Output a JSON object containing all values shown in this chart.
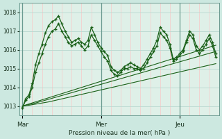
{
  "bg_color": "#cce8e0",
  "plot_bg_color": "#dff0e8",
  "grid_color_v": "#f8c8c8",
  "grid_color_h": "#b8d8d0",
  "line_color": "#1a6018",
  "xlabel": "Pression niveau de la mer( hPa )",
  "xtick_labels": [
    "Mar",
    "Mer",
    "Jeu"
  ],
  "xtick_positions": [
    0,
    24,
    48
  ],
  "vline_x": [
    0,
    24,
    48
  ],
  "ylim": [
    1012.5,
    1018.5
  ],
  "yticks": [
    1013,
    1014,
    1015,
    1016,
    1017,
    1018
  ],
  "xlim": [
    -1,
    60
  ],
  "n_points": 60,
  "series_volatile_1": [
    1012.9,
    1013.4,
    1013.6,
    1014.2,
    1015.2,
    1015.8,
    1016.3,
    1016.9,
    1017.3,
    1017.5,
    1017.6,
    1017.8,
    1017.4,
    1017.0,
    1016.7,
    1016.4,
    1016.5,
    1016.6,
    1016.4,
    1016.3,
    1016.5,
    1017.2,
    1016.8,
    1016.4,
    1016.1,
    1015.9,
    1015.7,
    1015.1,
    1014.9,
    1014.8,
    1014.9,
    1015.1,
    1015.2,
    1015.3,
    1015.2,
    1015.1,
    1015.0,
    1015.2,
    1015.5,
    1015.8,
    1016.1,
    1016.5,
    1017.2,
    1017.0,
    1016.8,
    1016.3,
    1015.5,
    1015.6,
    1015.8,
    1016.0,
    1016.5,
    1017.0,
    1016.8,
    1016.2,
    1016.0,
    1016.2,
    1016.5,
    1016.8,
    1016.4,
    1015.8
  ],
  "series_volatile_2": [
    1012.9,
    1013.3,
    1013.5,
    1014.0,
    1014.8,
    1015.3,
    1015.8,
    1016.3,
    1016.7,
    1017.0,
    1017.1,
    1017.4,
    1017.0,
    1016.7,
    1016.4,
    1016.2,
    1016.3,
    1016.4,
    1016.2,
    1016.0,
    1016.2,
    1016.8,
    1016.5,
    1016.2,
    1015.9,
    1015.6,
    1015.4,
    1014.9,
    1014.7,
    1014.6,
    1014.8,
    1015.0,
    1015.0,
    1015.1,
    1015.0,
    1015.0,
    1014.9,
    1015.0,
    1015.3,
    1015.6,
    1015.9,
    1016.2,
    1016.9,
    1016.7,
    1016.5,
    1016.1,
    1015.4,
    1015.5,
    1015.7,
    1015.9,
    1016.4,
    1016.8,
    1016.6,
    1016.0,
    1015.8,
    1016.0,
    1016.3,
    1016.6,
    1016.2,
    1015.6
  ],
  "series_linear_1": [
    1013.0,
    1013.02,
    1013.04,
    1013.07,
    1013.1,
    1013.13,
    1013.16,
    1013.19,
    1013.22,
    1013.26,
    1013.3,
    1013.34,
    1013.38,
    1013.42,
    1013.46,
    1013.5,
    1013.54,
    1013.58,
    1013.62,
    1013.66,
    1013.7,
    1013.74,
    1013.78,
    1013.82,
    1013.86,
    1013.9,
    1013.94,
    1013.98,
    1014.02,
    1014.06,
    1014.1,
    1014.14,
    1014.18,
    1014.22,
    1014.26,
    1014.3,
    1014.34,
    1014.38,
    1014.42,
    1014.46,
    1014.5,
    1014.54,
    1014.58,
    1014.62,
    1014.66,
    1014.7,
    1014.74,
    1014.78,
    1014.82,
    1014.86,
    1014.9,
    1014.94,
    1014.98,
    1015.02,
    1015.06,
    1015.1,
    1015.14,
    1015.18,
    1015.22,
    1015.26
  ],
  "series_linear_2": [
    1013.0,
    1013.04,
    1013.08,
    1013.12,
    1013.16,
    1013.21,
    1013.26,
    1013.31,
    1013.36,
    1013.41,
    1013.46,
    1013.51,
    1013.56,
    1013.61,
    1013.66,
    1013.71,
    1013.76,
    1013.81,
    1013.86,
    1013.91,
    1013.96,
    1014.01,
    1014.06,
    1014.11,
    1014.16,
    1014.21,
    1014.26,
    1014.31,
    1014.36,
    1014.41,
    1014.46,
    1014.51,
    1014.56,
    1014.61,
    1014.66,
    1014.71,
    1014.76,
    1014.81,
    1014.86,
    1014.91,
    1014.96,
    1015.01,
    1015.06,
    1015.11,
    1015.16,
    1015.21,
    1015.26,
    1015.31,
    1015.36,
    1015.41,
    1015.46,
    1015.51,
    1015.56,
    1015.61,
    1015.66,
    1015.71,
    1015.76,
    1015.81,
    1015.86,
    1015.91
  ],
  "series_linear_3": [
    1013.0,
    1013.055,
    1013.11,
    1013.165,
    1013.22,
    1013.275,
    1013.33,
    1013.385,
    1013.44,
    1013.495,
    1013.55,
    1013.605,
    1013.66,
    1013.715,
    1013.77,
    1013.825,
    1013.88,
    1013.935,
    1013.99,
    1014.045,
    1014.1,
    1014.155,
    1014.21,
    1014.265,
    1014.32,
    1014.375,
    1014.43,
    1014.485,
    1014.54,
    1014.595,
    1014.65,
    1014.705,
    1014.76,
    1014.815,
    1014.87,
    1014.925,
    1014.98,
    1015.035,
    1015.09,
    1015.145,
    1015.2,
    1015.255,
    1015.31,
    1015.365,
    1015.42,
    1015.475,
    1015.53,
    1015.585,
    1015.64,
    1015.695,
    1015.75,
    1015.805,
    1015.86,
    1015.915,
    1015.97,
    1016.025,
    1016.08,
    1016.135,
    1016.19,
    1016.245
  ]
}
